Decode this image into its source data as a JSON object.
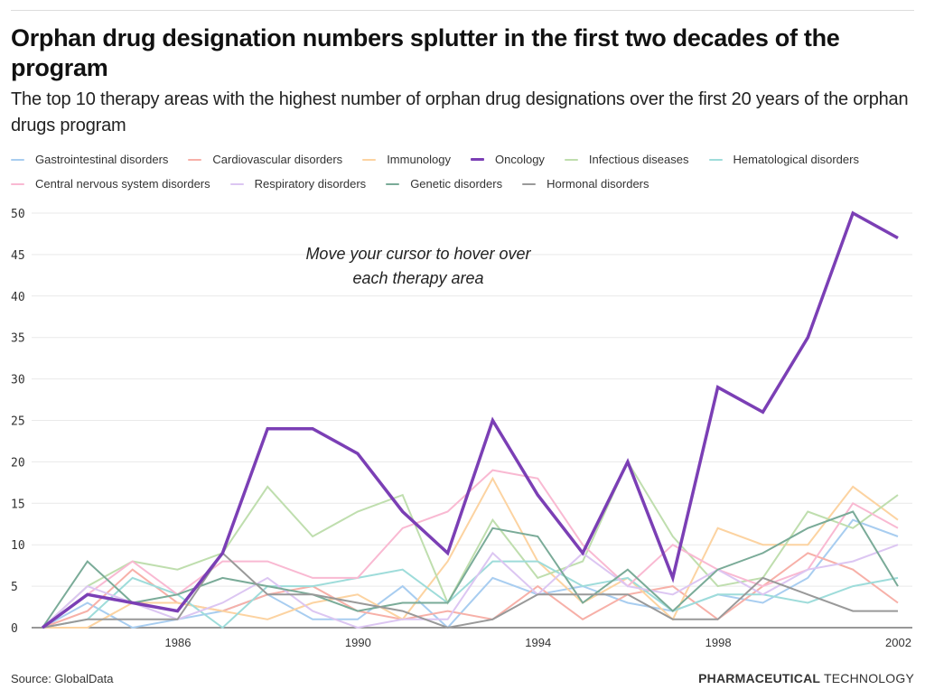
{
  "header": {
    "title": "Orphan drug designation numbers splutter in the first two decades of the program",
    "subtitle": "The top 10 therapy areas with the highest number of orphan drug designations over the first 20 years of the orphan drugs program"
  },
  "legend": {
    "rows": [
      [
        "Gastrointestinal disorders",
        "Cardiovascular disorders",
        "Immunology",
        "Oncology",
        "Infectious diseases",
        "Hematological disorders"
      ],
      [
        "Central nervous system disorders",
        "Respiratory disorders",
        "Genetic disorders",
        "Hormonal disorders"
      ]
    ]
  },
  "annotation": {
    "line1": "Move your cursor to hover over",
    "line2": "each therapy area"
  },
  "footer": {
    "source": "Source: GlobalData",
    "brand_bold": "PHARMACEUTICAL",
    "brand_light": "TECHNOLOGY"
  },
  "chart_data": {
    "type": "line",
    "title": "Orphan drug designation numbers splutter in the first two decades of the program",
    "xlabel": "",
    "ylabel": "",
    "x": [
      1983,
      1984,
      1985,
      1986,
      1987,
      1988,
      1989,
      1990,
      1991,
      1992,
      1993,
      1994,
      1995,
      1996,
      1997,
      1998,
      1999,
      2000,
      2001,
      2002
    ],
    "x_ticks": [
      "1986",
      "1990",
      "1994",
      "1998",
      "2002"
    ],
    "y_ticks": [
      "0",
      "5",
      "10",
      "15",
      "20",
      "25",
      "30",
      "35",
      "40",
      "45",
      "50"
    ],
    "ylim": [
      0,
      50
    ],
    "grid": true,
    "legend_position": "top",
    "series": [
      {
        "name": "Gastrointestinal disorders",
        "color": "#a8cdf0",
        "values": [
          0,
          3,
          0,
          1,
          2,
          4,
          1,
          1,
          5,
          0,
          6,
          4,
          5,
          3,
          2,
          4,
          3,
          6,
          13,
          11
        ]
      },
      {
        "name": "Cardiovascular disorders",
        "color": "#f7b0a8",
        "values": [
          0,
          2,
          7,
          3,
          2,
          4,
          5,
          2,
          1,
          2,
          1,
          5,
          1,
          4,
          5,
          1,
          5,
          9,
          7,
          3
        ]
      },
      {
        "name": "Immunology",
        "color": "#fcd3a1",
        "values": [
          0,
          0,
          3,
          3,
          2,
          1,
          3,
          4,
          1,
          8,
          18,
          8,
          3,
          6,
          1,
          12,
          10,
          10,
          17,
          13
        ]
      },
      {
        "name": "Infectious diseases",
        "color": "#bfdeae",
        "values": [
          0,
          5,
          8,
          7,
          9,
          17,
          11,
          14,
          16,
          3,
          13,
          6,
          8,
          20,
          11,
          5,
          6,
          14,
          12,
          16
        ]
      },
      {
        "name": "Hematological disorders",
        "color": "#9edcda",
        "values": [
          0,
          1,
          6,
          4,
          0,
          5,
          5,
          6,
          7,
          3,
          8,
          8,
          5,
          6,
          2,
          4,
          4,
          3,
          5,
          6
        ]
      },
      {
        "name": "Central nervous system disorders",
        "color": "#f9b9d2",
        "values": [
          0,
          4,
          8,
          4,
          8,
          8,
          6,
          6,
          12,
          14,
          19,
          18,
          10,
          5,
          10,
          7,
          5,
          7,
          15,
          12
        ]
      },
      {
        "name": "Respiratory disorders",
        "color": "#dcc6f2",
        "values": [
          0,
          5,
          3,
          1,
          3,
          6,
          2,
          0,
          1,
          1,
          9,
          4,
          9,
          5,
          4,
          7,
          4,
          7,
          8,
          10
        ]
      },
      {
        "name": "Genetic disorders",
        "color": "#7aab98",
        "values": [
          0,
          8,
          3,
          4,
          6,
          5,
          4,
          2,
          3,
          3,
          12,
          11,
          3,
          7,
          2,
          7,
          9,
          12,
          14,
          5
        ]
      },
      {
        "name": "Hormonal disorders",
        "color": "#999999",
        "values": [
          0,
          1,
          1,
          1,
          9,
          4,
          4,
          3,
          2,
          0,
          1,
          4,
          4,
          4,
          1,
          1,
          6,
          4,
          2,
          2
        ]
      },
      {
        "name": "Oncology",
        "color": "#7b3fb5",
        "values": [
          0,
          4,
          3,
          2,
          9,
          24,
          24,
          21,
          14,
          9,
          25,
          16,
          9,
          20,
          6,
          29,
          26,
          35,
          50,
          47
        ]
      }
    ]
  }
}
